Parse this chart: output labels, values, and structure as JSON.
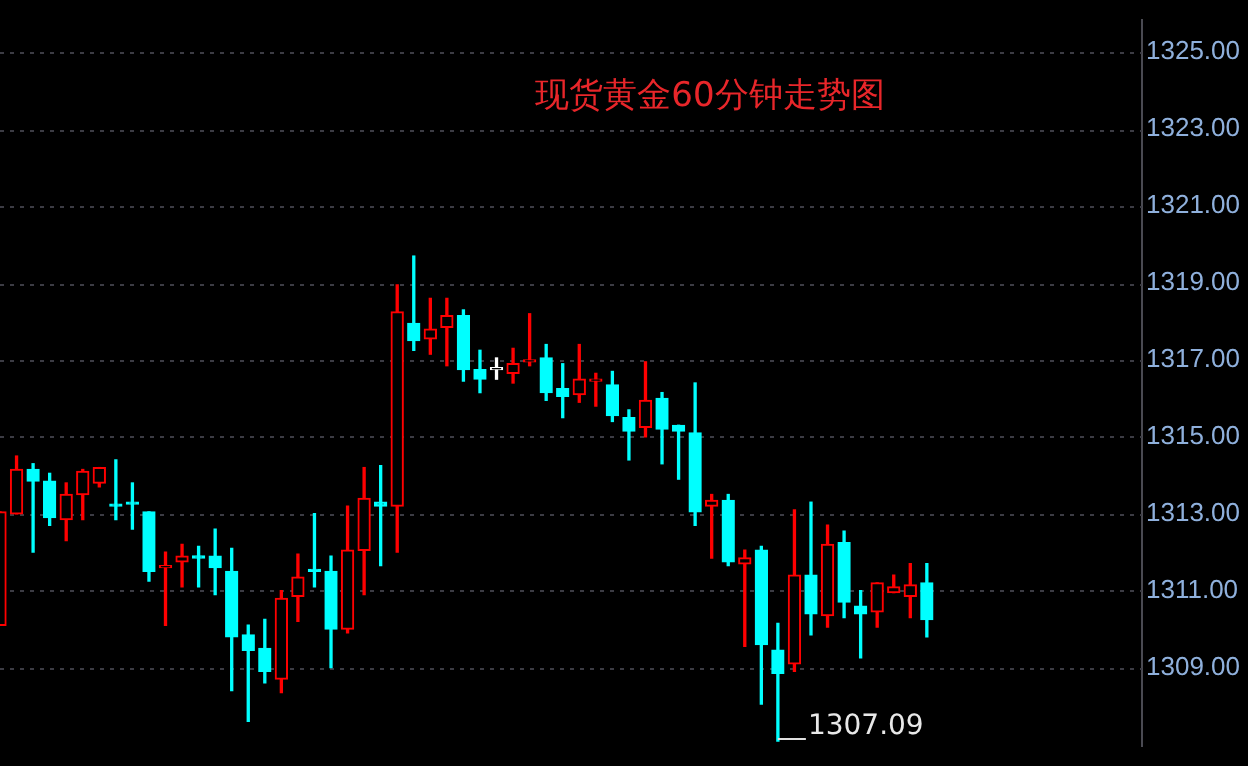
{
  "chart_data": {
    "type": "candlestick",
    "title": "现货黄金60分钟走势图",
    "categories": [
      null,
      null,
      null,
      null,
      null,
      null,
      null,
      null,
      null,
      null,
      null,
      null,
      null,
      null,
      null,
      null,
      null,
      null,
      null,
      null,
      null,
      null,
      null,
      null,
      null,
      null,
      null,
      null,
      null,
      null,
      null,
      null,
      null,
      null,
      null,
      null,
      null,
      null,
      null,
      null,
      null,
      null,
      null,
      null,
      null,
      null,
      null,
      null,
      null,
      null,
      null,
      null,
      null,
      null,
      null,
      null,
      null,
      null,
      null,
      null,
      null,
      null,
      null,
      null,
      null,
      null,
      null,
      null,
      null,
      null
    ],
    "ohlc": [
      [
        1310.1,
        1313.05,
        1310.1,
        1313.05
      ],
      [
        1313.0,
        1314.5,
        1313.0,
        1314.15
      ],
      [
        1314.15,
        1314.3,
        1312.0,
        1313.85
      ],
      [
        1313.85,
        1314.05,
        1312.7,
        1312.9
      ],
      [
        1312.85,
        1313.8,
        1312.3,
        1313.5
      ],
      [
        1313.5,
        1314.15,
        1312.85,
        1314.1
      ],
      [
        1313.8,
        1314.2,
        1313.7,
        1314.2
      ],
      [
        1313.25,
        1314.4,
        1312.85,
        1313.2
      ],
      [
        1313.3,
        1313.8,
        1312.6,
        1313.25
      ],
      [
        1313.05,
        1313.05,
        1311.25,
        1311.5
      ],
      [
        1311.6,
        1312.0,
        1310.1,
        1311.65
      ],
      [
        1311.75,
        1312.2,
        1311.1,
        1311.9
      ],
      [
        1311.9,
        1312.15,
        1311.1,
        1311.85
      ],
      [
        1311.9,
        1312.6,
        1310.9,
        1311.6
      ],
      [
        1311.5,
        1312.1,
        1308.4,
        1309.8
      ],
      [
        1309.85,
        1310.1,
        1307.6,
        1309.45
      ],
      [
        1309.5,
        1310.25,
        1308.6,
        1308.9
      ],
      [
        1308.7,
        1311.0,
        1308.35,
        1310.8
      ],
      [
        1310.85,
        1311.95,
        1310.2,
        1311.35
      ],
      [
        1311.55,
        1313.0,
        1311.1,
        1311.5
      ],
      [
        1311.5,
        1311.9,
        1309.0,
        1310.0
      ],
      [
        1310.0,
        1313.2,
        1309.9,
        1312.05
      ],
      [
        1312.05,
        1314.2,
        1310.9,
        1313.4
      ],
      [
        1313.3,
        1314.25,
        1311.65,
        1313.2
      ],
      [
        1313.2,
        1318.95,
        1312.0,
        1318.25
      ],
      [
        1317.95,
        1319.7,
        1317.25,
        1317.5
      ],
      [
        1317.55,
        1318.6,
        1317.15,
        1317.8
      ],
      [
        1317.85,
        1318.6,
        1316.85,
        1318.15
      ],
      [
        1318.15,
        1318.3,
        1316.45,
        1316.75
      ],
      [
        1316.75,
        1317.25,
        1316.15,
        1316.5
      ],
      [
        1316.75,
        1317.05,
        1316.5,
        1316.75
      ],
      [
        1316.65,
        1317.3,
        1316.4,
        1316.9
      ],
      [
        1316.95,
        1318.2,
        1316.85,
        1317.0
      ],
      [
        1317.05,
        1317.4,
        1315.95,
        1316.15
      ],
      [
        1316.25,
        1316.9,
        1315.5,
        1316.05
      ],
      [
        1316.1,
        1317.4,
        1315.9,
        1316.5
      ],
      [
        1316.45,
        1316.65,
        1315.8,
        1316.5
      ],
      [
        1316.35,
        1316.7,
        1315.4,
        1315.55
      ],
      [
        1315.5,
        1315.7,
        1314.4,
        1315.15
      ],
      [
        1315.25,
        1316.95,
        1315.0,
        1315.95
      ],
      [
        1316.0,
        1316.15,
        1314.3,
        1315.2
      ],
      [
        1315.3,
        1315.3,
        1313.9,
        1315.15
      ],
      [
        1315.1,
        1316.4,
        1312.7,
        1313.05
      ],
      [
        1313.2,
        1313.5,
        1311.85,
        1313.35
      ],
      [
        1313.35,
        1313.5,
        1311.65,
        1311.75
      ],
      [
        1311.7,
        1312.05,
        1309.55,
        1311.85
      ],
      [
        1312.05,
        1312.15,
        1308.05,
        1309.6
      ],
      [
        1309.45,
        1310.15,
        1307.09,
        1308.85
      ],
      [
        1309.1,
        1313.1,
        1308.9,
        1311.4
      ],
      [
        1311.4,
        1313.3,
        1309.85,
        1310.4
      ],
      [
        1310.35,
        1312.7,
        1310.05,
        1312.2
      ],
      [
        1312.25,
        1312.55,
        1310.3,
        1310.7
      ],
      [
        1310.6,
        1311.0,
        1309.25,
        1310.4
      ],
      [
        1310.45,
        1311.2,
        1310.05,
        1311.2
      ],
      [
        1310.95,
        1311.4,
        1310.95,
        1311.1
      ],
      [
        1310.85,
        1311.7,
        1310.3,
        1311.15
      ],
      [
        1311.2,
        1311.7,
        1309.8,
        1310.25
      ],
      null,
      null,
      null,
      null,
      null,
      null,
      null,
      null,
      null,
      null,
      null,
      null,
      null
    ],
    "colors": [
      "#ff0000",
      "#ff0000",
      "#00ffff",
      "#00ffff",
      "#ff0000",
      "#ff0000",
      "#ff0000",
      "#00ffff",
      "#00ffff",
      "#00ffff",
      "#ff0000",
      "#ff0000",
      "#00ffff",
      "#00ffff",
      "#00ffff",
      "#00ffff",
      "#00ffff",
      "#ff0000",
      "#ff0000",
      "#00ffff",
      "#00ffff",
      "#ff0000",
      "#ff0000",
      "#00ffff",
      "#ff0000",
      "#00ffff",
      "#ff0000",
      "#ff0000",
      "#00ffff",
      "#00ffff",
      "#ffffff",
      "#ff0000",
      "#ff0000",
      "#00ffff",
      "#00ffff",
      "#ff0000",
      "#ff0000",
      "#00ffff",
      "#00ffff",
      "#ff0000",
      "#00ffff",
      "#00ffff",
      "#00ffff",
      "#ff0000",
      "#00ffff",
      "#ff0000",
      "#00ffff",
      "#00ffff",
      "#ff0000",
      "#00ffff",
      "#ff0000",
      "#00ffff",
      "#00ffff",
      "#ff0000",
      "#ff0000",
      "#ff0000",
      "#00ffff",
      null,
      null,
      null,
      null,
      null,
      null,
      null,
      null,
      null,
      null,
      null,
      null,
      null
    ],
    "ylim": [
      1306.95,
      1325.85
    ],
    "yticks": [
      {
        "value": 1309,
        "label": "1309.00"
      },
      {
        "value": 1311,
        "label": "1311.00"
      },
      {
        "value": 1313,
        "label": "1313.00"
      },
      {
        "value": 1315,
        "label": "1315.00"
      },
      {
        "value": 1317,
        "label": "1317.00"
      },
      {
        "value": 1319,
        "label": "1319.00"
      },
      {
        "value": 1321,
        "label": "1321.00"
      },
      {
        "value": 1323,
        "label": "1323.00"
      },
      {
        "value": 1325,
        "label": "1325.00"
      }
    ],
    "grid": "y",
    "annotations": [
      "1307.09"
    ]
  }
}
